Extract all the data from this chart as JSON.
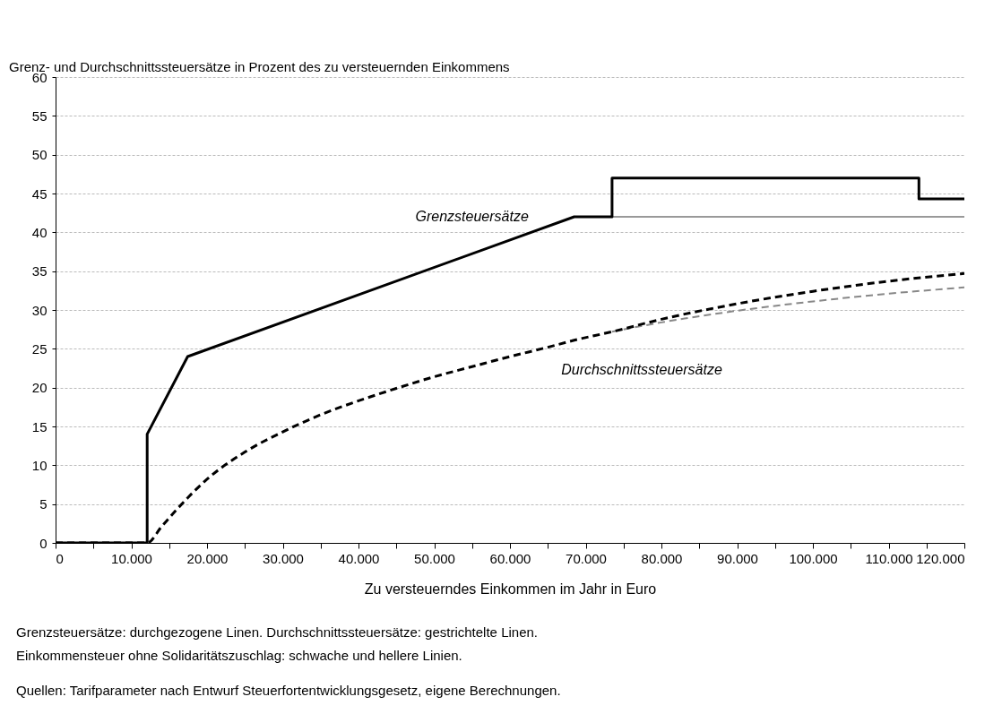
{
  "chart_data": {
    "type": "line",
    "title": "Grenz- und Durchschnittssteuersätze in Prozent des zu versteuernden Einkommens",
    "xlabel": "Zu versteuerndes Einkommen im Jahr in Euro",
    "annotations": [
      "Grenzsteuersätze: durchgezogene Linen. Durchschnittssteuersätze: gestrichtelte Linen.",
      "Einkommensteuer ohne Solidaritätszuschlag: schwache und hellere Linien.",
      "Quellen: Tarifparameter nach Entwurf Steuerfortentwicklungsgesetz, eigene Berechnungen."
    ],
    "xlim": [
      0,
      120000
    ],
    "ylim": [
      0,
      60
    ],
    "xticks": [
      {
        "value": 0,
        "label": "0"
      },
      {
        "value": 5000,
        "label": null
      },
      {
        "value": 10000,
        "label": "10.000"
      },
      {
        "value": 15000,
        "label": null
      },
      {
        "value": 20000,
        "label": "20.000"
      },
      {
        "value": 25000,
        "label": null
      },
      {
        "value": 30000,
        "label": "30.000"
      },
      {
        "value": 35000,
        "label": null
      },
      {
        "value": 40000,
        "label": "40.000"
      },
      {
        "value": 45000,
        "label": null
      },
      {
        "value": 50000,
        "label": "50.000"
      },
      {
        "value": 55000,
        "label": null
      },
      {
        "value": 60000,
        "label": "60.000"
      },
      {
        "value": 65000,
        "label": null
      },
      {
        "value": 70000,
        "label": "70.000"
      },
      {
        "value": 75000,
        "label": null
      },
      {
        "value": 80000,
        "label": "80.000"
      },
      {
        "value": 85000,
        "label": null
      },
      {
        "value": 90000,
        "label": "90.000"
      },
      {
        "value": 95000,
        "label": null
      },
      {
        "value": 100000,
        "label": "100.000"
      },
      {
        "value": 105000,
        "label": null
      },
      {
        "value": 110000,
        "label": "110.000"
      },
      {
        "value": 115000,
        "label": null
      },
      {
        "value": 120000,
        "label": "120.000"
      }
    ],
    "yticks": [
      0,
      5,
      10,
      15,
      20,
      25,
      30,
      35,
      40,
      45,
      50,
      55,
      60
    ],
    "grid": "y",
    "series": [
      {
        "color": "#999999",
        "line_style": "solid",
        "x": [
          73481,
          120000
        ],
        "values": [
          42,
          42
        ]
      },
      {
        "color": "#888888",
        "line_style": "dashed",
        "x": [
          73481,
          80000,
          90000,
          100000,
          110000,
          120000
        ],
        "values": [
          27.2,
          28.4,
          29.9,
          31.1,
          32.1,
          32.9
        ]
      },
      {
        "name": "Grenzsteuersätze",
        "color": "#000000",
        "line_style": "solid",
        "x": [
          0,
          12096,
          12096,
          17443,
          68480,
          73481,
          73481,
          114000,
          114000,
          120000
        ],
        "values": [
          0,
          0,
          14,
          24,
          42,
          42,
          47,
          47,
          44.3,
          44.3
        ]
      },
      {
        "name": "Durchschnittssteuersätze",
        "color": "#000000",
        "line_style": "dashed",
        "x": [
          0,
          12096,
          14000,
          16000,
          17443,
          20000,
          25000,
          30000,
          35000,
          40000,
          45000,
          50000,
          55000,
          60000,
          65000,
          68480,
          73481,
          80000,
          90000,
          100000,
          110000,
          120000
        ],
        "values": [
          0,
          0,
          2.1,
          4.3,
          5.8,
          8.2,
          11.7,
          14.3,
          16.5,
          18.3,
          19.9,
          21.4,
          22.7,
          24.0,
          25.2,
          26.1,
          27.2,
          28.8,
          30.8,
          32.4,
          33.7,
          34.7
        ]
      }
    ]
  }
}
